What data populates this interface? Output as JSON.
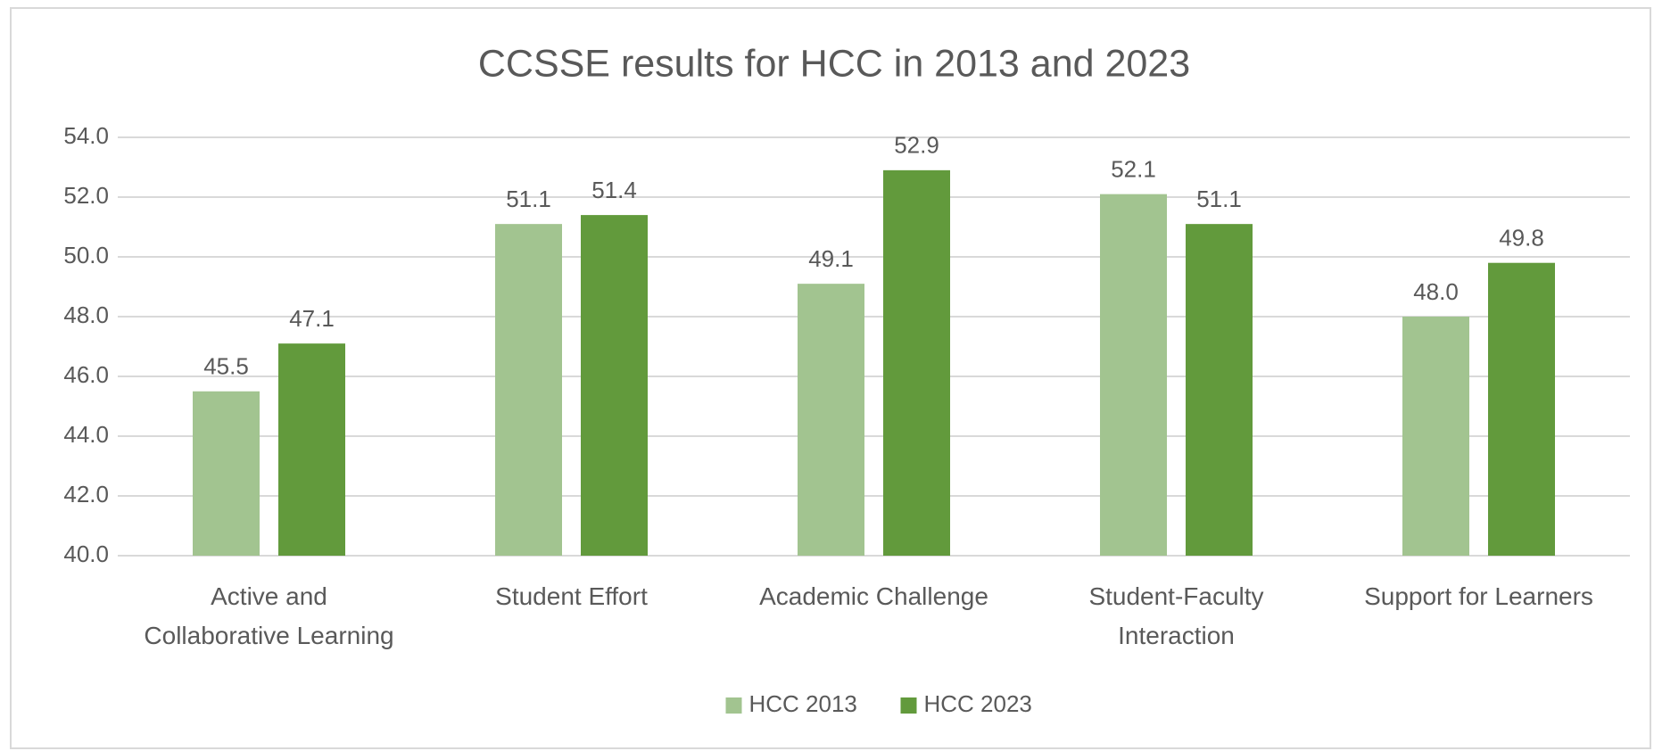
{
  "chart_data": {
    "type": "bar",
    "title": "CCSSE results for HCC in 2013 and 2023",
    "categories": [
      "Active and\nCollaborative Learning",
      "Student Effort",
      "Academic Challenge",
      "Student-Faculty\nInteraction",
      "Support for Learners"
    ],
    "series": [
      {
        "name": "HCC 2013",
        "color": "#a2c490",
        "values": [
          45.5,
          51.1,
          49.1,
          52.1,
          48
        ],
        "value_labels": [
          "45.5",
          "51.1",
          "49.1",
          "52.1",
          "48.0"
        ]
      },
      {
        "name": "HCC 2023",
        "color": "#629a3c",
        "values": [
          47.1,
          51.4,
          52.9,
          51.1,
          49.8
        ],
        "value_labels": [
          "47.1",
          "51.4",
          "52.9",
          "51.1",
          "49.8"
        ]
      }
    ],
    "ylim": [
      40,
      54
    ],
    "yticks": [
      {
        "value": 40,
        "label": "40.0"
      },
      {
        "value": 42,
        "label": "42.0"
      },
      {
        "value": 44,
        "label": "44.0"
      },
      {
        "value": 46,
        "label": "46.0"
      },
      {
        "value": 48,
        "label": "48.0"
      },
      {
        "value": 50,
        "label": "50.0"
      },
      {
        "value": 52,
        "label": "52.0"
      },
      {
        "value": 54,
        "label": "54.0"
      }
    ],
    "grid": true,
    "legend": "bottom"
  }
}
